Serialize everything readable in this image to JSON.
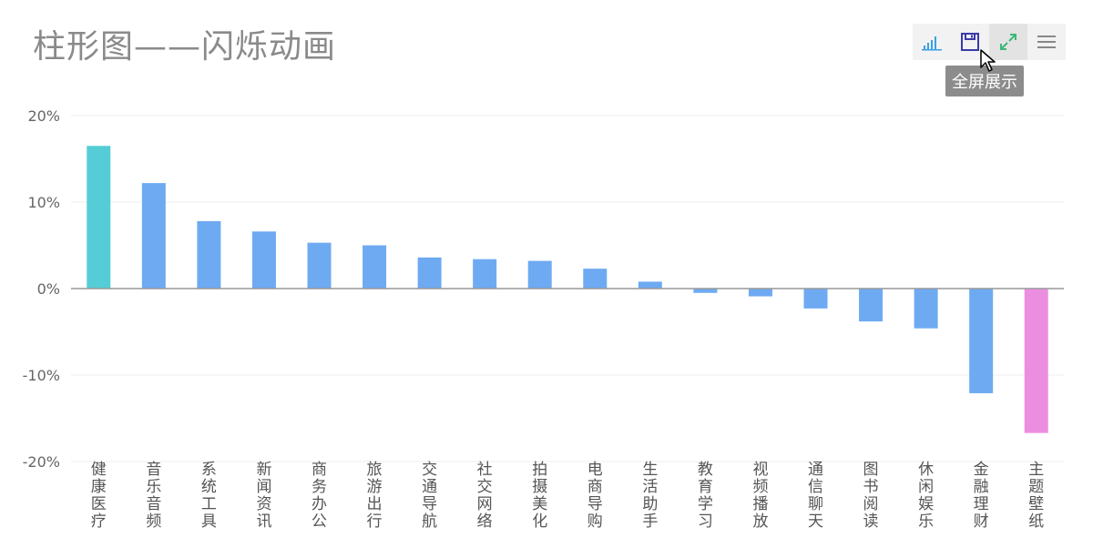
{
  "title": "柱形图——闪烁动画",
  "toolbar": {
    "items": [
      {
        "icon": "bar-chart-icon",
        "color": "#3aa0e8"
      },
      {
        "icon": "save-icon",
        "color": "#3a3aa8"
      },
      {
        "icon": "fullscreen-icon",
        "color": "#3cb878"
      },
      {
        "icon": "menu-icon",
        "color": "#888888"
      }
    ],
    "tooltip": "全屏展示"
  },
  "chart_data": {
    "type": "bar",
    "categories": [
      "健康医疗",
      "音乐音频",
      "系统工具",
      "新闻资讯",
      "商务办公",
      "旅游出行",
      "交通导航",
      "社交网络",
      "拍摄美化",
      "电商导购",
      "生活助手",
      "教育学习",
      "视频播放",
      "通信聊天",
      "图书阅读",
      "休闲娱乐",
      "金融理财",
      "主题壁纸"
    ],
    "values": [
      16.5,
      12.2,
      7.8,
      6.6,
      5.3,
      5.0,
      3.6,
      3.4,
      3.2,
      2.3,
      0.8,
      -0.5,
      -0.9,
      -2.3,
      -3.8,
      -4.6,
      -12.1,
      -16.7
    ],
    "colors": {
      "default": "#6eaaf2",
      "first": "#55cdd6",
      "last": "#ec8ee0"
    },
    "y_ticks": [
      "20%",
      "10%",
      "0%",
      "-10%",
      "-20%"
    ],
    "ylim": [
      -20,
      20
    ],
    "grid": true
  }
}
